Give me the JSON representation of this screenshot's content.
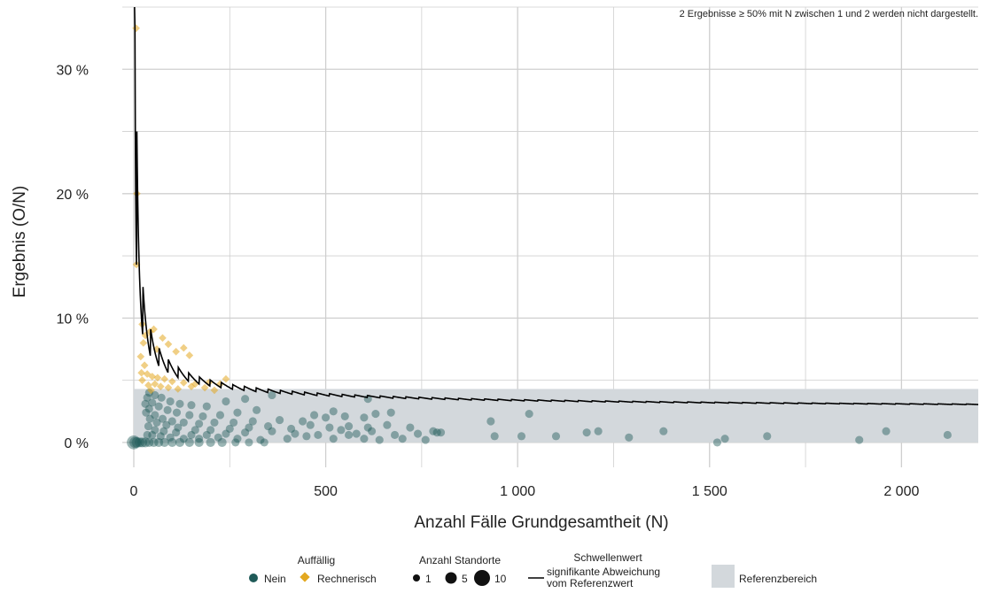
{
  "note": "2 Ergebnisse ≥ 50% mit N zwischen 1 und 2 werden nicht dargestellt.",
  "chart_data": {
    "type": "scatter",
    "xlabel": "Anzahl Fälle Grundgesamtheit (N)",
    "ylabel": "Ergebnis (O/N)",
    "xlim": [
      -30,
      2200
    ],
    "ylim": [
      -2,
      35
    ],
    "x_ticks": [
      0,
      500,
      1000,
      1500,
      2000
    ],
    "x_tick_labels": [
      "0",
      "500",
      "1 000",
      "1 500",
      "2 000"
    ],
    "y_ticks": [
      0,
      10,
      20,
      30
    ],
    "y_tick_labels": [
      "0 %",
      "10 %",
      "20 %",
      "30 %"
    ],
    "grid": true,
    "reference_range": [
      0,
      4.3
    ],
    "threshold": {
      "p": 2.4,
      "z": 1.96,
      "n_from": 2,
      "n_to": 2200
    },
    "colors": {
      "nein": "#1f5a58",
      "rechnerisch": "#e3a820",
      "reference": "#d3d8dc",
      "threshold": "#000000",
      "grid": "#cfcfcf"
    },
    "series": [
      {
        "name": "Nein",
        "marker": "circle",
        "points": [
          [
            0,
            0,
            12
          ],
          [
            3,
            0,
            6
          ],
          [
            8,
            0,
            5
          ],
          [
            15,
            0,
            4
          ],
          [
            22,
            0,
            4
          ],
          [
            30,
            0,
            4
          ],
          [
            40,
            0,
            3
          ],
          [
            52,
            0,
            3
          ],
          [
            65,
            0,
            3
          ],
          [
            80,
            0,
            3
          ],
          [
            100,
            0,
            3
          ],
          [
            120,
            0,
            3
          ],
          [
            145,
            0,
            3
          ],
          [
            170,
            0,
            3
          ],
          [
            200,
            0,
            3
          ],
          [
            230,
            0,
            3
          ],
          [
            265,
            0,
            2
          ],
          [
            300,
            0,
            2
          ],
          [
            340,
            0,
            2
          ],
          [
            35,
            0.6,
            2
          ],
          [
            48,
            0.6,
            2
          ],
          [
            70,
            0.5,
            2
          ],
          [
            95,
            0.4,
            2
          ],
          [
            130,
            0.3,
            2
          ],
          [
            170,
            0.3,
            2
          ],
          [
            220,
            0.4,
            2
          ],
          [
            270,
            0.3,
            2
          ],
          [
            330,
            0.2,
            2
          ],
          [
            400,
            0.3,
            2
          ],
          [
            450,
            0.5,
            2
          ],
          [
            520,
            0.3,
            2
          ],
          [
            560,
            0.6,
            2
          ],
          [
            600,
            0.3,
            2
          ],
          [
            640,
            0.2,
            2
          ],
          [
            700,
            0.3,
            2
          ],
          [
            760,
            0.2,
            2
          ],
          [
            38,
            1.3,
            2
          ],
          [
            55,
            1.0,
            2
          ],
          [
            78,
            0.9,
            2
          ],
          [
            110,
            0.8,
            2
          ],
          [
            150,
            0.6,
            2
          ],
          [
            190,
            0.6,
            2
          ],
          [
            240,
            0.7,
            2
          ],
          [
            290,
            0.8,
            2
          ],
          [
            360,
            0.9,
            2
          ],
          [
            420,
            0.7,
            2
          ],
          [
            480,
            0.6,
            2
          ],
          [
            540,
            1.0,
            2
          ],
          [
            580,
            0.7,
            2
          ],
          [
            620,
            0.9,
            2
          ],
          [
            680,
            0.6,
            2
          ],
          [
            740,
            0.7,
            2
          ],
          [
            32,
            2.4,
            2
          ],
          [
            42,
            1.9,
            2
          ],
          [
            60,
            1.6,
            2
          ],
          [
            85,
            1.4,
            2
          ],
          [
            115,
            1.2,
            2
          ],
          [
            160,
            1.0,
            2
          ],
          [
            200,
            1.0,
            2
          ],
          [
            250,
            1.1,
            2
          ],
          [
            300,
            1.2,
            2
          ],
          [
            350,
            1.3,
            2
          ],
          [
            410,
            1.1,
            2
          ],
          [
            460,
            1.4,
            2
          ],
          [
            510,
            1.2,
            2
          ],
          [
            560,
            1.3,
            2
          ],
          [
            610,
            1.2,
            2
          ],
          [
            660,
            1.4,
            2
          ],
          [
            720,
            1.2,
            2
          ],
          [
            790,
            0.8,
            2
          ],
          [
            30,
            3.1,
            2
          ],
          [
            40,
            2.7,
            2
          ],
          [
            55,
            2.2,
            2
          ],
          [
            75,
            1.9,
            2
          ],
          [
            100,
            1.7,
            2
          ],
          [
            130,
            1.6,
            2
          ],
          [
            170,
            1.5,
            2
          ],
          [
            210,
            1.6,
            2
          ],
          [
            260,
            1.6,
            2
          ],
          [
            310,
            1.7,
            2
          ],
          [
            380,
            1.8,
            2
          ],
          [
            440,
            1.7,
            2
          ],
          [
            500,
            2.0,
            2
          ],
          [
            550,
            2.1,
            2
          ],
          [
            600,
            2.0,
            2
          ],
          [
            35,
            3.6,
            2
          ],
          [
            48,
            3.2,
            2
          ],
          [
            65,
            2.9,
            2
          ],
          [
            88,
            2.6,
            2
          ],
          [
            112,
            2.4,
            2
          ],
          [
            145,
            2.2,
            2
          ],
          [
            180,
            2.1,
            2
          ],
          [
            225,
            2.2,
            2
          ],
          [
            270,
            2.4,
            2
          ],
          [
            320,
            2.6,
            2
          ],
          [
            470,
            2.2,
            2
          ],
          [
            520,
            2.5,
            2
          ],
          [
            630,
            2.3,
            2
          ],
          [
            670,
            2.4,
            2
          ],
          [
            610,
            3.5,
            2
          ],
          [
            40,
            4.0,
            2
          ],
          [
            55,
            3.8,
            2
          ],
          [
            72,
            3.6,
            2
          ],
          [
            95,
            3.3,
            2
          ],
          [
            120,
            3.1,
            2
          ],
          [
            150,
            3.0,
            2
          ],
          [
            190,
            2.9,
            2
          ],
          [
            240,
            3.3,
            2
          ],
          [
            290,
            3.5,
            2
          ],
          [
            360,
            3.8,
            2
          ],
          [
            930,
            1.7,
            2
          ],
          [
            1030,
            2.3,
            2
          ],
          [
            780,
            0.9,
            2
          ],
          [
            800,
            0.8,
            2
          ],
          [
            940,
            0.5,
            2
          ],
          [
            1010,
            0.5,
            2
          ],
          [
            1100,
            0.5,
            2
          ],
          [
            1180,
            0.8,
            2
          ],
          [
            1210,
            0.9,
            2
          ],
          [
            1290,
            0.4,
            2
          ],
          [
            1380,
            0.9,
            2
          ],
          [
            1520,
            0.0,
            2
          ],
          [
            1540,
            0.3,
            2
          ],
          [
            1650,
            0.5,
            2
          ],
          [
            1890,
            0.2,
            2
          ],
          [
            1960,
            0.9,
            2
          ],
          [
            2120,
            0.6,
            2
          ]
        ]
      },
      {
        "name": "Rechnerisch",
        "marker": "diamond",
        "points": [
          [
            6,
            33.3,
            2
          ],
          [
            8,
            20.0,
            2
          ],
          [
            7,
            14.3,
            2
          ],
          [
            22,
            9.5,
            2
          ],
          [
            30,
            8.6,
            2
          ],
          [
            42,
            8.9,
            2
          ],
          [
            52,
            9.1,
            2
          ],
          [
            25,
            8.0,
            2
          ],
          [
            60,
            7.5,
            2
          ],
          [
            75,
            8.4,
            2
          ],
          [
            90,
            7.9,
            2
          ],
          [
            110,
            7.3,
            2
          ],
          [
            130,
            7.6,
            2
          ],
          [
            145,
            7.0,
            2
          ],
          [
            18,
            6.9,
            2
          ],
          [
            28,
            6.2,
            2
          ],
          [
            20,
            5.6,
            2
          ],
          [
            35,
            5.5,
            2
          ],
          [
            48,
            5.3,
            2
          ],
          [
            62,
            5.2,
            2
          ],
          [
            80,
            5.1,
            2
          ],
          [
            100,
            4.9,
            2
          ],
          [
            130,
            4.8,
            2
          ],
          [
            160,
            4.7,
            2
          ],
          [
            195,
            4.8,
            2
          ],
          [
            225,
            4.7,
            2
          ],
          [
            240,
            5.1,
            2
          ],
          [
            22,
            5.0,
            2
          ],
          [
            38,
            4.6,
            2
          ],
          [
            55,
            4.7,
            2
          ],
          [
            70,
            4.5,
            2
          ],
          [
            90,
            4.4,
            2
          ],
          [
            115,
            4.3,
            2
          ],
          [
            150,
            4.5,
            2
          ],
          [
            185,
            4.4,
            2
          ],
          [
            210,
            4.2,
            2
          ],
          [
            45,
            4.2,
            2
          ]
        ]
      }
    ]
  },
  "legend": {
    "auffaellig": {
      "title": "Auffällig",
      "nein": "Nein",
      "rechnerisch": "Rechnerisch"
    },
    "standorte": {
      "title": "Anzahl Standorte",
      "s1": "1",
      "s5": "5",
      "s10": "10"
    },
    "schwelle": {
      "title": "Schwellenwert",
      "line1": "signifikante Abweichung",
      "line2": "vom Referenzwert"
    },
    "referenz": {
      "label": "Referenzbereich"
    }
  }
}
